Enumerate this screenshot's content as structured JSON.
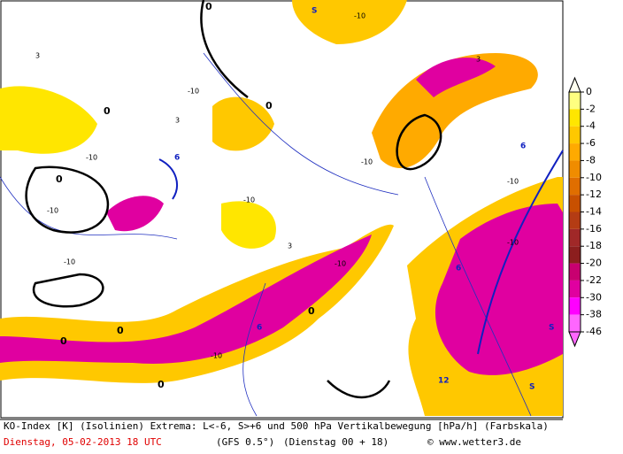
{
  "colorbar": {
    "ticks": [
      0,
      -2,
      -4,
      -6,
      -8,
      -10,
      -12,
      -14,
      -16,
      -18,
      -20,
      -22,
      -30,
      -38,
      -46
    ],
    "colors": [
      "#ffff80",
      "#ffe600",
      "#ffc800",
      "#ffaa00",
      "#f08c00",
      "#e06e00",
      "#c85000",
      "#b43c14",
      "#a02828",
      "#8c1e1e",
      "#c80070",
      "#e000a0",
      "#ff00ff",
      "#ff66ff"
    ]
  },
  "footer": {
    "line1": "KO-Index [K] (Isolinien) Extrema: L<-6, S>+6 und 500 hPa Vertikalbewegung [hPa/h] (Farbskala)",
    "date": "Dienstag, 05-02-2013  18 UTC",
    "model": "(GFS 0.5°)",
    "run": "(Dienstag 00 + 18)",
    "credit": "© www.wetter3.de"
  },
  "map": {
    "labels": [
      "-10",
      "-10",
      "-10",
      "-10",
      "-10",
      "-10",
      "-10",
      "-10",
      "-10",
      "-10",
      "-10",
      "3",
      "3",
      "3",
      "3",
      "6",
      "6",
      "6",
      "6",
      "S",
      "S",
      "S",
      "12",
      "0",
      "0",
      "0",
      "0",
      "0",
      "0",
      "0",
      "0"
    ]
  }
}
